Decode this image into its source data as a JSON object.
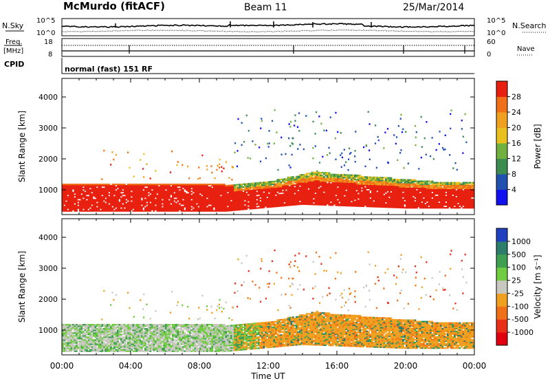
{
  "header": {
    "station": "McMurdo (fitACF)",
    "beam": "Beam 11",
    "date": "25/Mar/2014"
  },
  "noise_panel": {
    "left_label": "N.Sky",
    "right_label": "N.Search",
    "left_ticks": [
      "10^5",
      "10^0"
    ],
    "right_ticks": [
      "10^5",
      "10^0"
    ]
  },
  "freq_panel": {
    "left_label_1": "Freq.",
    "left_label_2": "[MHz]",
    "left_ticks": [
      "18",
      "8"
    ],
    "right_label": "Nave",
    "right_ticks": [
      "60",
      "0"
    ]
  },
  "cpid": {
    "label": "CPID",
    "value": "normal (fast) 151 RF"
  },
  "chart_data": [
    {
      "type": "heatmap",
      "name": "power-panel",
      "ylabel": "Slant Range [km]",
      "yticks": [
        "1000",
        "2000",
        "3000",
        "4000"
      ],
      "ylim": [
        200,
        4600
      ],
      "xlim_hours": [
        0,
        24
      ],
      "colorbar_label": "Power [dB]",
      "colorbar_ticks": [
        "4",
        "8",
        "12",
        "16",
        "20",
        "24",
        "28"
      ],
      "colors": [
        "#1010f0",
        "#2050b0",
        "#3c8c50",
        "#70b040",
        "#e8c020",
        "#f0a020",
        "#f07018",
        "#e82010"
      ]
    },
    {
      "type": "heatmap",
      "name": "velocity-panel",
      "ylabel": "Slant Range [km]",
      "yticks": [
        "1000",
        "2000",
        "3000",
        "4000"
      ],
      "ylim": [
        200,
        4600
      ],
      "xlim_hours": [
        0,
        24
      ],
      "colorbar_label": "Velocity [m s⁻¹]",
      "colorbar_ticks": [
        "1000",
        "500",
        "100",
        "25",
        "-25",
        "-100",
        "-500",
        "-1000"
      ],
      "colors": [
        "#2040c0",
        "#2e7d6a",
        "#3ea050",
        "#70cc40",
        "#c8c8c0",
        "#f0a020",
        "#f07018",
        "#e83018",
        "#e00010"
      ]
    }
  ],
  "x_axis": {
    "ticks": [
      "00:00",
      "04:00",
      "08:00",
      "12:00",
      "16:00",
      "20:00",
      "00:00"
    ],
    "label": "Time UT"
  }
}
